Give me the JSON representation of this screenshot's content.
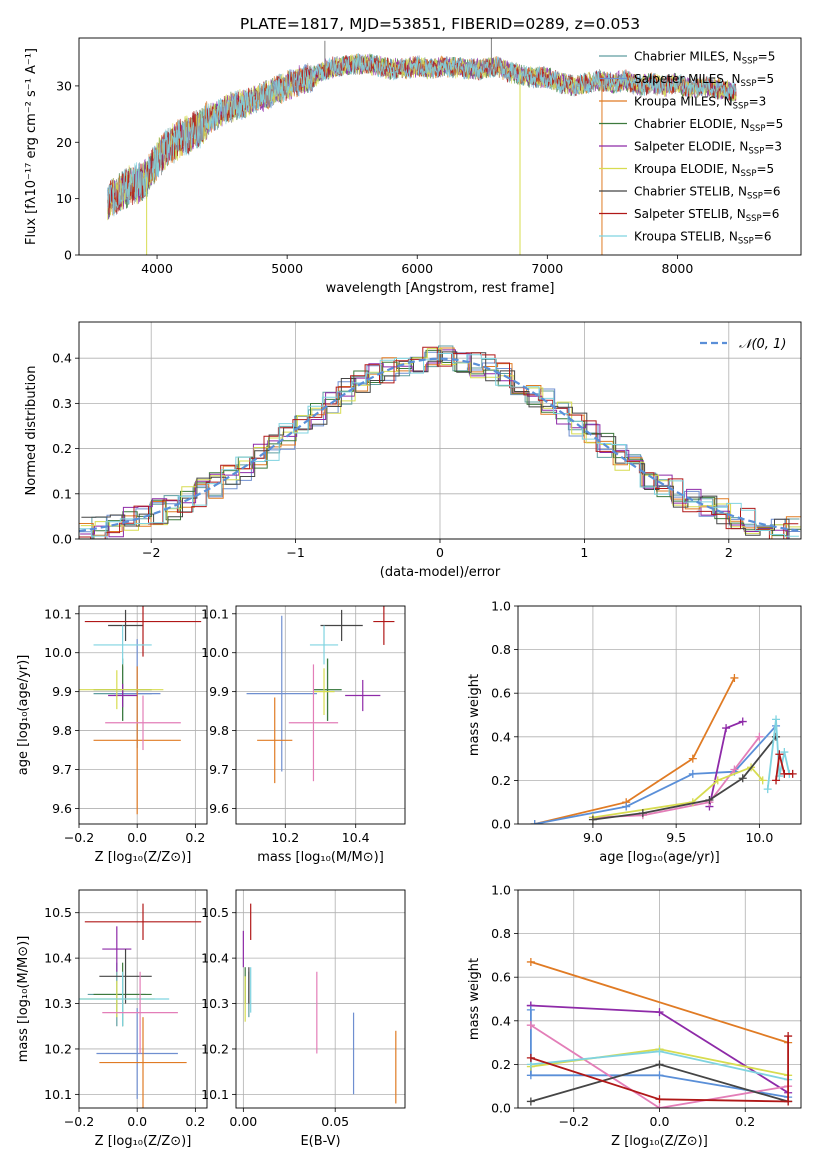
{
  "figure": {
    "title": "PLATE=1817, MJD=53851, FIBERID=0289, z=0.053"
  },
  "models": [
    {
      "name": "Chabrier MILES",
      "nssp": "5",
      "color": "#5f9ea0"
    },
    {
      "name": "Salpeter MILES",
      "nssp": "5",
      "color": "#6f8fd0"
    },
    {
      "name": "Kroupa MILES",
      "nssp": "3",
      "color": "#e07b24"
    },
    {
      "name": "Chabrier ELODIE",
      "nssp": "5",
      "color": "#3d7a3d"
    },
    {
      "name": "Salpeter ELODIE",
      "nssp": "3",
      "color": "#8e2aa8"
    },
    {
      "name": "Kroupa ELODIE",
      "nssp": "5",
      "color": "#d7dc50"
    },
    {
      "name": "Chabrier STELIB",
      "nssp": "6",
      "color": "#454545"
    },
    {
      "name": "Salpeter STELIB",
      "nssp": "6",
      "color": "#b01818"
    },
    {
      "name": "Kroupa STELIB",
      "nssp": "6",
      "color": "#7fd3e0"
    }
  ],
  "chart_data": [
    {
      "id": "spectrum",
      "type": "line",
      "xlabel": "wavelength [Angstrom, rest frame]",
      "ylabel": "Flux [fλ10⁻¹⁷ erg cm⁻² s⁻¹ A⁻¹]",
      "xlim": [
        3400,
        8950
      ],
      "ylim": [
        0,
        38.5
      ],
      "xticks": [
        "4000",
        "5000",
        "6000",
        "7000",
        "8000"
      ],
      "yticks": [
        "0",
        "10",
        "20",
        "30"
      ],
      "legend": "right",
      "continuum": {
        "x": [
          3620,
          3700,
          3800,
          3900,
          4000,
          4100,
          4200,
          4300,
          4400,
          4500,
          4600,
          4700,
          4800,
          4900,
          5000,
          5100,
          5200,
          5300,
          5400,
          5500,
          5600,
          5700,
          5800,
          5900,
          6000,
          6100,
          6200,
          6300,
          6400,
          6500,
          6600,
          6700,
          6800,
          6900,
          7000,
          7100,
          7200,
          7300,
          7400,
          7500,
          7600,
          7700,
          7800,
          7900,
          8000,
          8100,
          8200,
          8300,
          8400,
          8450
        ],
        "y": [
          9.5,
          11,
          12.5,
          13,
          17,
          19.5,
          21,
          22,
          24,
          25.5,
          26.5,
          27,
          28,
          29,
          30,
          31,
          31.5,
          33,
          33.5,
          33.8,
          34,
          33.5,
          33,
          33,
          33.5,
          33,
          33.5,
          33.3,
          33,
          33,
          33.5,
          32.5,
          32,
          31.5,
          31.5,
          30.5,
          30,
          30.5,
          31,
          30.5,
          31,
          30,
          30.5,
          30,
          30.5,
          29.5,
          30,
          29.5,
          29,
          28.5
        ]
      },
      "spikes": [
        {
          "x": 3920,
          "y": 0,
          "color": "#d7dc50"
        },
        {
          "x": 6790,
          "y": 0,
          "color": "#d7dc50"
        },
        {
          "x": 7420,
          "y": 0,
          "color": "#e07b24"
        },
        {
          "x": 5290,
          "y": 38,
          "color": "#808080"
        },
        {
          "x": 6570,
          "y": 38.5,
          "color": "#808080"
        }
      ]
    },
    {
      "id": "residuals",
      "type": "line",
      "xlabel": "(data-model)/error",
      "ylabel": "Normed distribution",
      "xlim": [
        -2.5,
        2.5
      ],
      "ylim": [
        0,
        0.48
      ],
      "xticks": [
        "−2",
        "−1",
        "0",
        "1",
        "2"
      ],
      "yticks": [
        "0.0",
        "0.1",
        "0.2",
        "0.3",
        "0.4"
      ],
      "legend": "top-right",
      "gauss_label": "𝒩(0, 1)",
      "gauss_color": "#5a8fd8"
    },
    {
      "id": "age-vs-Z",
      "type": "scatter",
      "xlabel": "Z [log₁₀(Z/Z⊙)]",
      "ylabel": "age  [log₁₀(age/yr)]",
      "xlim": [
        -0.2,
        0.24
      ],
      "ylim": [
        9.56,
        10.12
      ],
      "xticks": [
        "−0.2",
        "0.0",
        "0.2"
      ],
      "yticks": [
        "9.6",
        "9.7",
        "9.8",
        "9.9",
        "10.0",
        "10.1"
      ],
      "points": [
        {
          "x": -0.05,
          "y": 9.895,
          "xerr": 0.1,
          "yerr": 0.07
        },
        {
          "x": 0.0,
          "y": 9.895,
          "xerr": 0.08,
          "yerr": 0.14
        },
        {
          "x": 0.0,
          "y": 9.775,
          "xerr": 0.15,
          "yerr": 0.19
        },
        {
          "x": -0.05,
          "y": 9.905,
          "xerr": 0.1,
          "yerr": 0.08
        },
        {
          "x": -0.05,
          "y": 9.89,
          "xerr": 0.05,
          "yerr": 0.03
        },
        {
          "x": -0.07,
          "y": 9.905,
          "xerr": 0.16,
          "yerr": 0.05
        },
        {
          "x": -0.04,
          "y": 10.07,
          "xerr": 0.06,
          "yerr": 0.04
        },
        {
          "x": 0.02,
          "y": 10.08,
          "xerr": 0.2,
          "yerr": 0.09
        },
        {
          "x": -0.05,
          "y": 10.02,
          "xerr": 0.1,
          "yerr": 0.05
        }
      ],
      "extra": [
        {
          "x": 0.02,
          "y": 9.82,
          "xerr": 0.13,
          "yerr": 0.07,
          "color": "#e37eb8"
        }
      ]
    },
    {
      "id": "age-vs-mass",
      "type": "scatter",
      "xlabel": "mass [log₁₀(M/M⊙)]",
      "ylabel": "",
      "xlim": [
        10.06,
        10.54
      ],
      "ylim": [
        9.56,
        10.12
      ],
      "xticks": [
        "10.2",
        "10.4"
      ],
      "yticks": [
        "9.6",
        "9.7",
        "9.8",
        "9.9",
        "10.0",
        "10.1"
      ],
      "points": [
        {
          "x": 10.32,
          "y": 9.905,
          "xerr": 0.04,
          "yerr": 0.08
        },
        {
          "x": 10.19,
          "y": 9.895,
          "xerr": 0.1,
          "yerr": 0.2
        },
        {
          "x": 10.17,
          "y": 9.775,
          "xerr": 0.05,
          "yerr": 0.11
        },
        {
          "x": 10.32,
          "y": 9.905,
          "xerr": 0.04,
          "yerr": 0.08
        },
        {
          "x": 10.42,
          "y": 9.89,
          "xerr": 0.05,
          "yerr": 0.04
        },
        {
          "x": 10.31,
          "y": 9.9,
          "xerr": 0.03,
          "yerr": 0.06
        },
        {
          "x": 10.36,
          "y": 10.07,
          "xerr": 0.06,
          "yerr": 0.04
        },
        {
          "x": 10.48,
          "y": 10.08,
          "xerr": 0.03,
          "yerr": 0.06
        },
        {
          "x": 10.31,
          "y": 10.02,
          "xerr": 0.04,
          "yerr": 0.05
        }
      ],
      "extra": [
        {
          "x": 10.28,
          "y": 9.82,
          "xerr": 0.07,
          "yerr": 0.15,
          "color": "#e37eb8"
        }
      ]
    },
    {
      "id": "weight-vs-age",
      "type": "line",
      "xlabel": "age  [log₁₀(age/yr)]",
      "ylabel": "mass weight",
      "xlim": [
        8.55,
        10.25
      ],
      "ylim": [
        0,
        1
      ],
      "xticks": [
        "9.0",
        "9.5",
        "10.0"
      ],
      "yticks": [
        "0.0",
        "0.2",
        "0.4",
        "0.6",
        "0.8",
        "1.0"
      ],
      "series": [
        {
          "x": [
            8.65,
            9.2,
            9.6,
            9.85
          ],
          "y": [
            0.0,
            0.1,
            0.3,
            0.67
          ],
          "color": "#e07b24"
        },
        {
          "x": [
            8.65,
            9.2,
            9.6,
            9.85,
            10.1
          ],
          "y": [
            0.0,
            0.08,
            0.23,
            0.24,
            0.45
          ],
          "color": "#5a8fd8"
        },
        {
          "x": [
            9.7,
            9.8,
            9.9
          ],
          "y": [
            0.08,
            0.44,
            0.47
          ],
          "color": "#8e2aa8"
        },
        {
          "x": [
            9.0,
            9.3,
            9.7,
            9.85,
            10.0
          ],
          "y": [
            0.03,
            0.04,
            0.1,
            0.25,
            0.4
          ],
          "color": "#e37eb8"
        },
        {
          "x": [
            9.0,
            9.6,
            9.75,
            9.95,
            10.02
          ],
          "y": [
            0.03,
            0.1,
            0.2,
            0.26,
            0.2
          ],
          "color": "#d7dc50"
        },
        {
          "x": [
            9.0,
            9.3,
            9.7,
            9.9,
            10.1
          ],
          "y": [
            0.02,
            0.05,
            0.11,
            0.21,
            0.4
          ],
          "color": "#454545"
        },
        {
          "x": [
            10.05,
            10.1,
            10.12,
            10.15,
            10.18
          ],
          "y": [
            0.16,
            0.48,
            0.22,
            0.33,
            0.23
          ],
          "color": "#7fd3e0"
        },
        {
          "x": [
            10.1,
            10.12,
            10.15,
            10.2
          ],
          "y": [
            0.2,
            0.32,
            0.23,
            0.23
          ],
          "color": "#b01818"
        }
      ]
    },
    {
      "id": "mass-vs-Z",
      "type": "scatter",
      "xlabel": "Z [log₁₀(Z/Z⊙)]",
      "ylabel": "mass [log₁₀(M/M⊙)]",
      "xlim": [
        -0.2,
        0.24
      ],
      "ylim": [
        10.07,
        10.55
      ],
      "xticks": [
        "−0.2",
        "0.0",
        "0.2"
      ],
      "yticks": [
        "10.1",
        "10.2",
        "10.3",
        "10.4",
        "10.5"
      ],
      "points": [
        {
          "x": -0.07,
          "y": 10.32,
          "xerr": 0.1,
          "yerr": 0.07
        },
        {
          "x": 0.0,
          "y": 10.19,
          "xerr": 0.14,
          "yerr": 0.1
        },
        {
          "x": 0.02,
          "y": 10.17,
          "xerr": 0.15,
          "yerr": 0.1
        },
        {
          "x": -0.05,
          "y": 10.32,
          "xerr": 0.1,
          "yerr": 0.07
        },
        {
          "x": -0.07,
          "y": 10.42,
          "xerr": 0.05,
          "yerr": 0.05
        },
        {
          "x": -0.07,
          "y": 10.31,
          "xerr": 0.13,
          "yerr": 0.04
        },
        {
          "x": -0.04,
          "y": 10.36,
          "xerr": 0.09,
          "yerr": 0.06
        },
        {
          "x": 0.02,
          "y": 10.48,
          "xerr": 0.2,
          "yerr": 0.04
        },
        {
          "x": -0.05,
          "y": 10.31,
          "xerr": 0.16,
          "yerr": 0.06
        }
      ],
      "extra": [
        {
          "x": 0.01,
          "y": 10.28,
          "xerr": 0.13,
          "yerr": 0.09,
          "color": "#e37eb8"
        }
      ]
    },
    {
      "id": "mass-vs-ebv",
      "type": "scatter",
      "xlabel": "E(B-V)",
      "ylabel": "",
      "xlim": [
        -0.004,
        0.088
      ],
      "ylim": [
        10.07,
        10.55
      ],
      "xticks": [
        "0.00",
        "0.05"
      ],
      "yticks": [
        "10.1",
        "10.2",
        "10.3",
        "10.4",
        "10.5"
      ],
      "points": [
        {
          "x": 0.003,
          "y": 10.32,
          "xerr": 0,
          "yerr": 0.05
        },
        {
          "x": 0.06,
          "y": 10.19,
          "xerr": 0,
          "yerr": 0.09
        },
        {
          "x": 0.083,
          "y": 10.16,
          "xerr": 0,
          "yerr": 0.08
        },
        {
          "x": 0.001,
          "y": 10.34,
          "xerr": 0,
          "yerr": 0.04
        },
        {
          "x": 0.0,
          "y": 10.42,
          "xerr": 0,
          "yerr": 0.04
        },
        {
          "x": 0.001,
          "y": 10.31,
          "xerr": 0,
          "yerr": 0.05
        },
        {
          "x": 0.003,
          "y": 10.34,
          "xerr": 0,
          "yerr": 0.04
        },
        {
          "x": 0.004,
          "y": 10.48,
          "xerr": 0,
          "yerr": 0.04
        },
        {
          "x": 0.004,
          "y": 10.33,
          "xerr": 0,
          "yerr": 0.05
        }
      ],
      "extra": [
        {
          "x": 0.04,
          "y": 10.28,
          "xerr": 0,
          "yerr": 0.09,
          "color": "#e37eb8"
        }
      ]
    },
    {
      "id": "weight-vs-Z",
      "type": "line",
      "xlabel": "Z [log₁₀(Z/Z⊙)]",
      "ylabel": "mass weight",
      "xlim": [
        -0.33,
        0.33
      ],
      "ylim": [
        0,
        1
      ],
      "xticks": [
        "−0.2",
        "0.0",
        "0.2"
      ],
      "yticks": [
        "0.0",
        "0.2",
        "0.4",
        "0.6",
        "0.8",
        "1.0"
      ],
      "series": [
        {
          "x": [
            -0.3,
            0.3
          ],
          "y": [
            0.67,
            0.3
          ],
          "color": "#e07b24"
        },
        {
          "x": [
            -0.3,
            -0.3,
            0.0,
            0.3
          ],
          "y": [
            0.47,
            0.47,
            0.44,
            0.07
          ],
          "color": "#8e2aa8"
        },
        {
          "x": [
            -0.3,
            -0.3,
            0.0,
            0.3
          ],
          "y": [
            0.45,
            0.15,
            0.15,
            0.05
          ],
          "color": "#5a8fd8"
        },
        {
          "x": [
            -0.3,
            -0.3,
            0.0,
            0.3
          ],
          "y": [
            0.38,
            0.38,
            0.0,
            0.1
          ],
          "color": "#e37eb8"
        },
        {
          "x": [
            -0.3,
            0.0,
            0.3
          ],
          "y": [
            0.19,
            0.27,
            0.15
          ],
          "color": "#d7dc50"
        },
        {
          "x": [
            -0.3,
            0.0,
            0.3
          ],
          "y": [
            0.2,
            0.26,
            0.13
          ],
          "color": "#7fd3e0"
        },
        {
          "x": [
            -0.3,
            0.0,
            0.3
          ],
          "y": [
            0.03,
            0.2,
            0.03
          ],
          "color": "#454545"
        },
        {
          "x": [
            -0.3,
            0.0,
            0.3,
            0.3
          ],
          "y": [
            0.23,
            0.04,
            0.03,
            0.33
          ],
          "color": "#b01818"
        }
      ]
    }
  ]
}
